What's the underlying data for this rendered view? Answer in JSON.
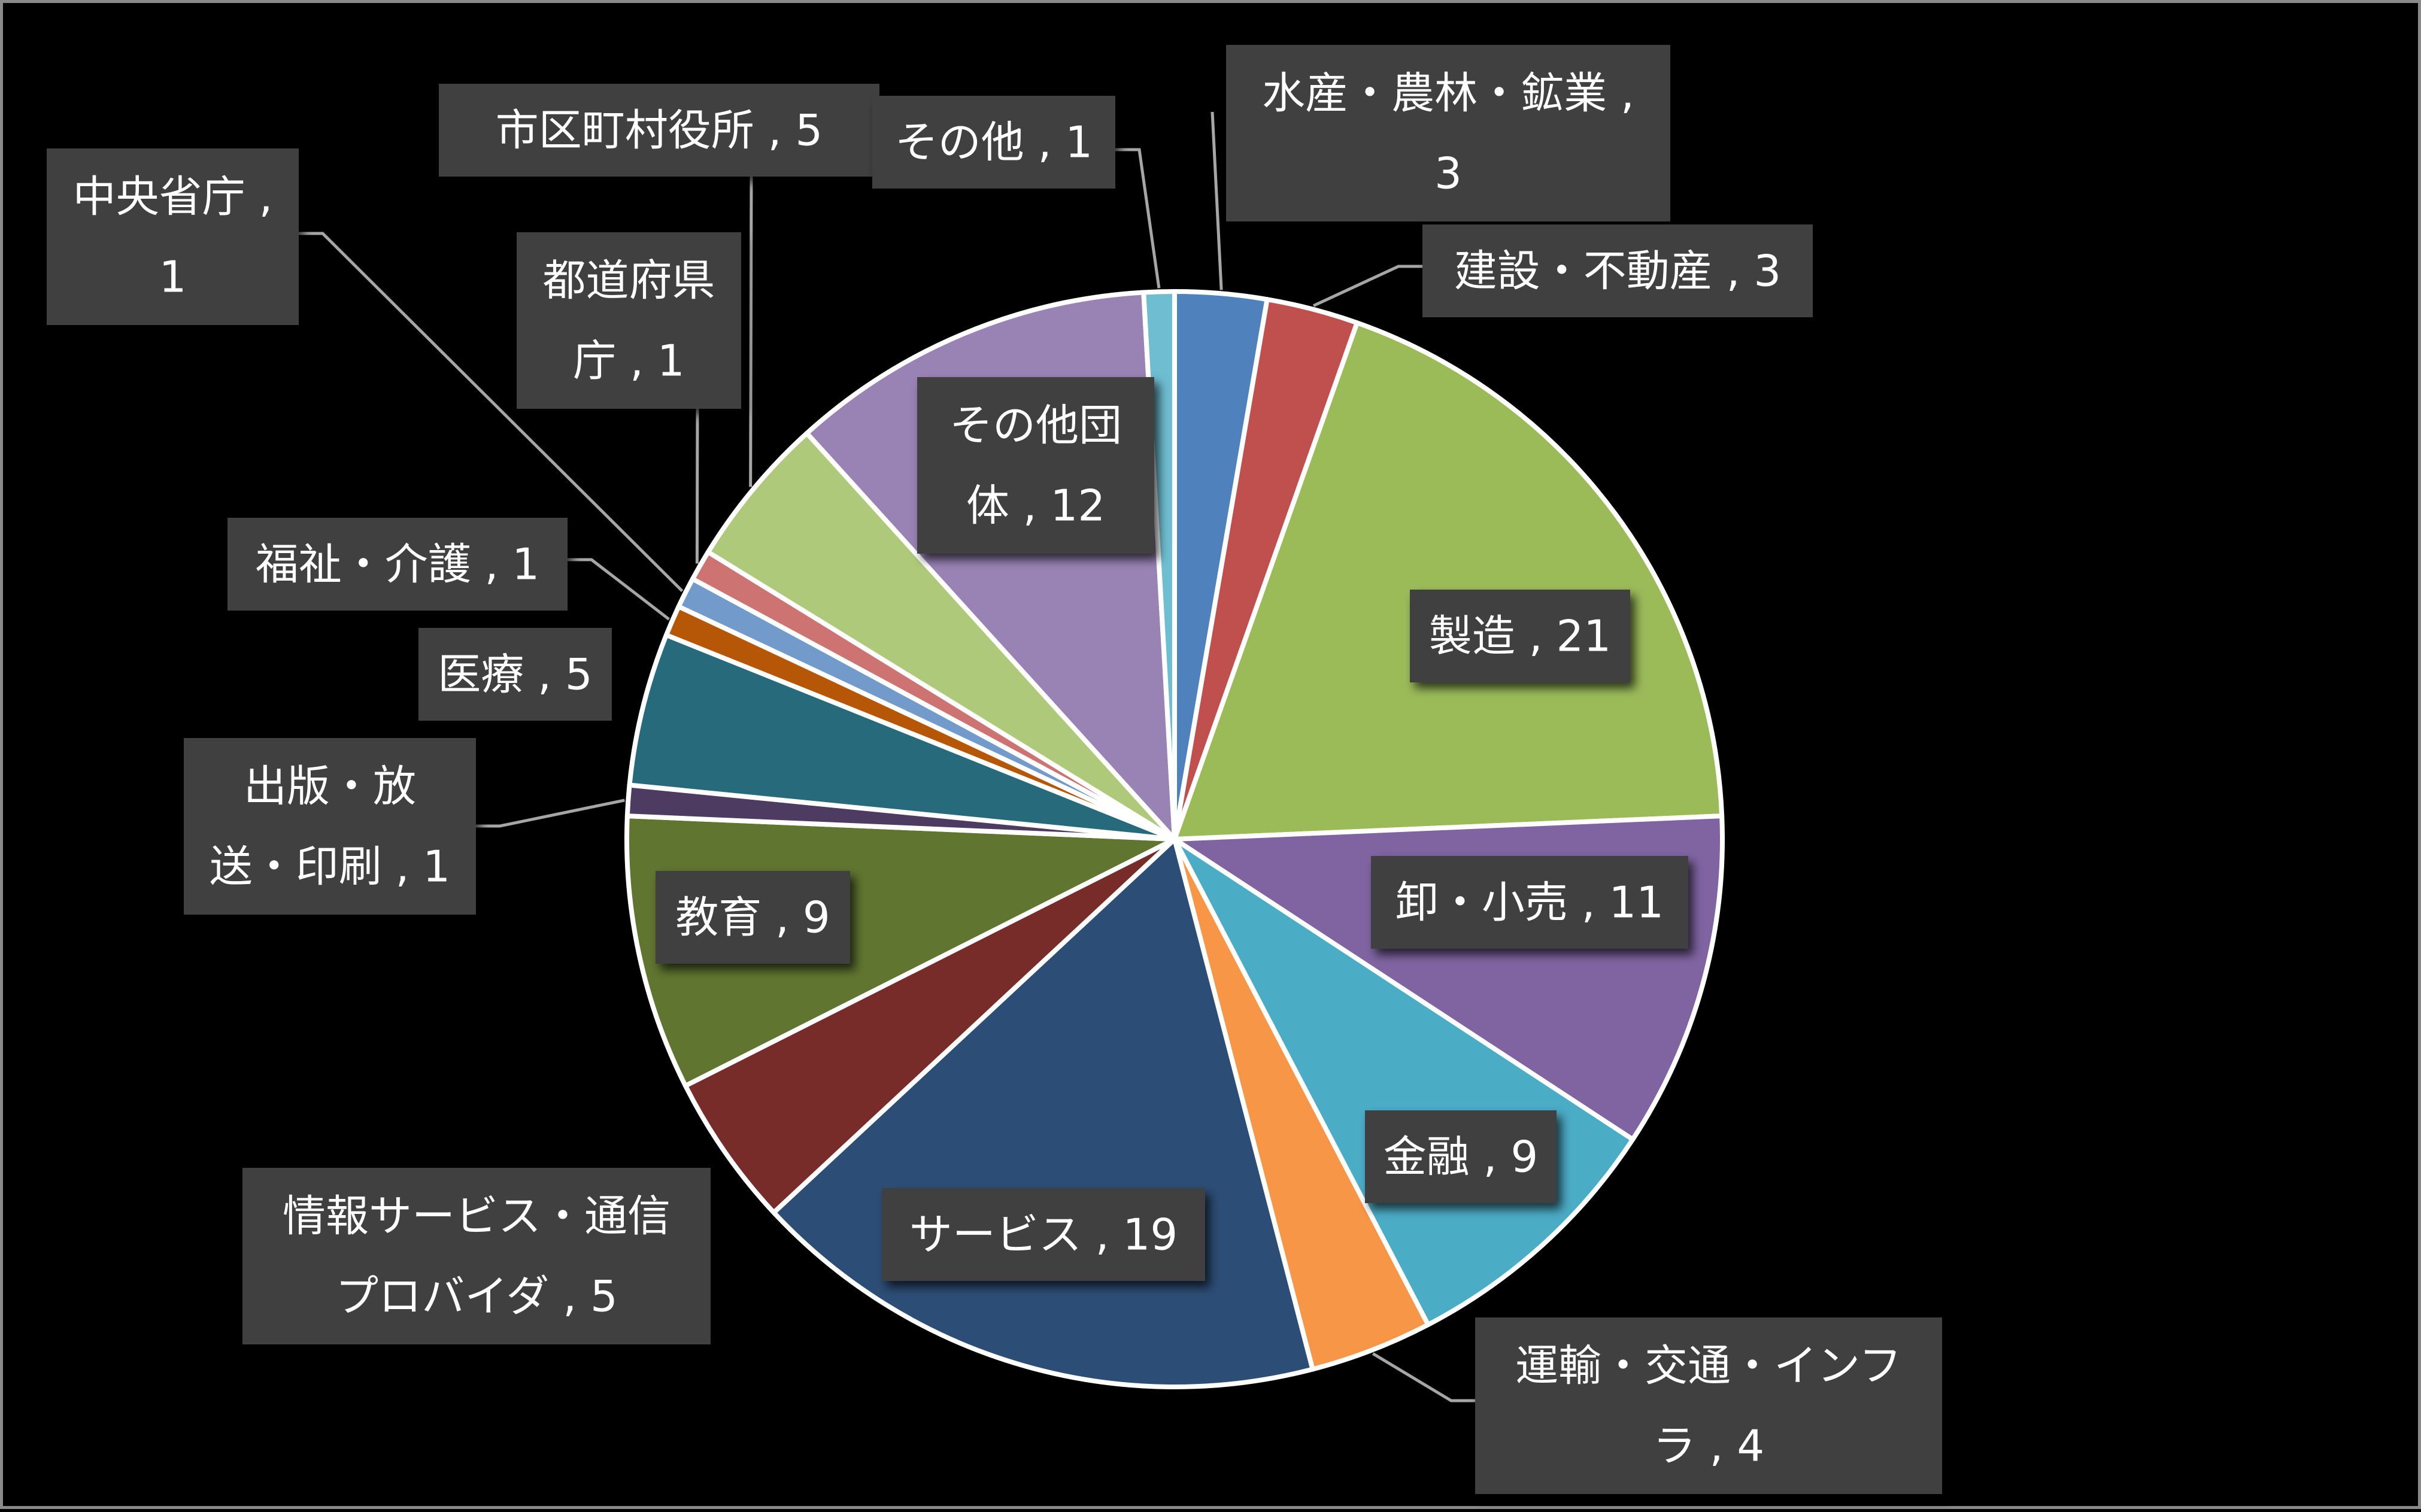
{
  "chart_data": {
    "type": "pie",
    "title": "",
    "label_format": "category , value",
    "start_angle": "12 o'clock",
    "direction": "clockwise",
    "slices": [
      {
        "category": "水産・農林・鉱業",
        "value": 3,
        "color": "#4F81BD"
      },
      {
        "category": "建設・不動産",
        "value": 3,
        "color": "#C0504D"
      },
      {
        "category": "製造",
        "value": 21,
        "color": "#9BBB59"
      },
      {
        "category": "卸・小売",
        "value": 11,
        "color": "#8064A2"
      },
      {
        "category": "金融",
        "value": 9,
        "color": "#4BACC6"
      },
      {
        "category": "運輸・交通・インフラ",
        "value": 4,
        "color": "#F79646"
      },
      {
        "category": "サービス",
        "value": 19,
        "color": "#2C4D75"
      },
      {
        "category": "情報サービス・通信プロバイダ",
        "value": 5,
        "color": "#772C2A"
      },
      {
        "category": "教育",
        "value": 9,
        "color": "#5F7530"
      },
      {
        "category": "出版・放送・印刷",
        "value": 1,
        "color": "#4D3B62"
      },
      {
        "category": "医療",
        "value": 5,
        "color": "#276A7C"
      },
      {
        "category": "福祉・介護",
        "value": 1,
        "color": "#B65708"
      },
      {
        "category": "中央省庁",
        "value": 1,
        "color": "#729ACA"
      },
      {
        "category": "都道府県庁",
        "value": 1,
        "color": "#CD7371"
      },
      {
        "category": "市区町村役所",
        "value": 5,
        "color": "#AFC97A"
      },
      {
        "category": "その他団体",
        "value": 12,
        "color": "#9983B5"
      },
      {
        "category": "その他",
        "value": 1,
        "color": "#6FBDD1"
      }
    ],
    "labels": [
      {
        "lines": [
          "水産・農林・鉱業 ,",
          "3"
        ]
      },
      {
        "lines": [
          "建設・不動産 , 3"
        ]
      },
      {
        "lines": [
          "製造 , 21"
        ]
      },
      {
        "lines": [
          "卸・小売 , 11"
        ]
      },
      {
        "lines": [
          "金融 , 9"
        ]
      },
      {
        "lines": [
          "運輸・交通・インフ",
          "ラ , 4"
        ]
      },
      {
        "lines": [
          "サービス , 19"
        ]
      },
      {
        "lines": [
          "情報サービス・通信",
          "プロバイダ , 5"
        ]
      },
      {
        "lines": [
          "教育 , 9"
        ]
      },
      {
        "lines": [
          "出版・放",
          "送・印刷 , 1"
        ]
      },
      {
        "lines": [
          "医療 , 5"
        ]
      },
      {
        "lines": [
          "福祉・介護 , 1"
        ]
      },
      {
        "lines": [
          "中央省庁 ,",
          "1"
        ]
      },
      {
        "lines": [
          "都道府県",
          "庁 , 1"
        ]
      },
      {
        "lines": [
          "市区町村役所 , 5"
        ]
      },
      {
        "lines": [
          "その他団",
          "体 , 12"
        ]
      },
      {
        "lines": [
          "その他 , 1"
        ]
      }
    ],
    "label_box_color": "#404040",
    "label_text_color": "#FFFFFF",
    "leader_line_color": "#A6A6A6",
    "slice_border_color": "#FFFFFF",
    "background_color": "#000000",
    "frame_border_color": "#8A8A8A"
  }
}
